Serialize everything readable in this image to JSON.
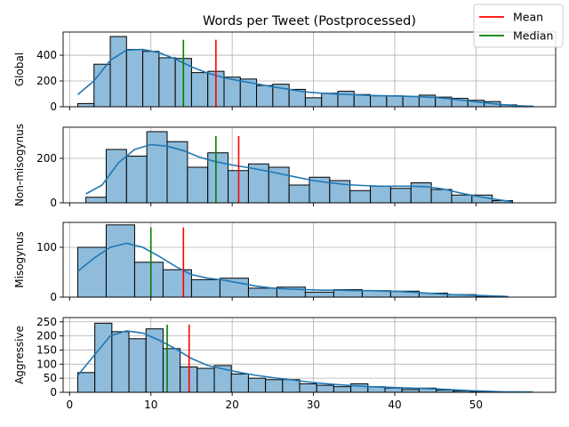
{
  "title": "Words per Tweet (Postprocessed)",
  "legend": {
    "placement": "top-right",
    "items": [
      {
        "label": "Mean",
        "color": "#ff0000"
      },
      {
        "label": "Median",
        "color": "#008000"
      }
    ]
  },
  "colors": {
    "bar_fill": "#8fbcdb",
    "bar_edge": "#000000",
    "kde": "#1f77b4",
    "grid": "#b0b0b0"
  },
  "chart_data": [
    {
      "type": "bar",
      "name": "Global",
      "ylabel": "Global",
      "xlim": [
        -0.8,
        59.8
      ],
      "ylim": [
        0,
        580
      ],
      "yticks": [
        0,
        200,
        400
      ],
      "bin_edges": [
        1,
        3,
        5,
        7,
        9,
        11,
        13,
        15,
        17,
        19,
        21,
        23,
        25,
        27,
        29,
        31,
        33,
        35,
        37,
        39,
        41,
        43,
        45,
        47,
        49,
        51,
        53,
        55,
        57
      ],
      "values": [
        25,
        330,
        545,
        445,
        430,
        380,
        375,
        265,
        275,
        230,
        215,
        165,
        175,
        135,
        70,
        105,
        120,
        95,
        85,
        85,
        80,
        90,
        75,
        65,
        50,
        40,
        15,
        5
      ],
      "mean": 18,
      "median": 14,
      "ref_line_top": 520,
      "kde": [
        [
          1,
          95
        ],
        [
          3,
          200
        ],
        [
          5,
          360
        ],
        [
          7,
          440
        ],
        [
          9,
          445
        ],
        [
          11,
          420
        ],
        [
          13,
          370
        ],
        [
          15,
          310
        ],
        [
          17,
          260
        ],
        [
          19,
          225
        ],
        [
          21,
          200
        ],
        [
          23,
          178
        ],
        [
          25,
          155
        ],
        [
          27,
          135
        ],
        [
          29,
          115
        ],
        [
          31,
          105
        ],
        [
          33,
          98
        ],
        [
          35,
          93
        ],
        [
          37,
          88
        ],
        [
          39,
          85
        ],
        [
          41,
          82
        ],
        [
          43,
          78
        ],
        [
          45,
          72
        ],
        [
          47,
          60
        ],
        [
          49,
          45
        ],
        [
          51,
          32
        ],
        [
          53,
          18
        ],
        [
          55,
          8
        ],
        [
          57,
          2
        ]
      ]
    },
    {
      "type": "bar",
      "name": "Non-misogynus",
      "ylabel": "Non-misogynus",
      "xlim": [
        -0.8,
        59.8
      ],
      "ylim": [
        0,
        340
      ],
      "yticks": [
        0,
        200
      ],
      "bin_edges": [
        2,
        4.5,
        7,
        9.5,
        12,
        14.5,
        17,
        19.5,
        22,
        24.5,
        27,
        29.5,
        32,
        34.5,
        37,
        39.5,
        42,
        44.5,
        47,
        49.5,
        52,
        54.5
      ],
      "values": [
        25,
        240,
        210,
        320,
        275,
        160,
        225,
        145,
        175,
        160,
        80,
        115,
        100,
        55,
        75,
        65,
        90,
        60,
        35,
        35,
        10
      ],
      "mean": 20.8,
      "median": 18,
      "ref_line_top": 300,
      "kde": [
        [
          2,
          40
        ],
        [
          4,
          80
        ],
        [
          6,
          180
        ],
        [
          8,
          240
        ],
        [
          10,
          262
        ],
        [
          12,
          255
        ],
        [
          14,
          235
        ],
        [
          16,
          205
        ],
        [
          18,
          185
        ],
        [
          20,
          170
        ],
        [
          22,
          158
        ],
        [
          24,
          145
        ],
        [
          26,
          130
        ],
        [
          28,
          115
        ],
        [
          30,
          100
        ],
        [
          32,
          90
        ],
        [
          34,
          82
        ],
        [
          36,
          78
        ],
        [
          38,
          75
        ],
        [
          40,
          75
        ],
        [
          42,
          75
        ],
        [
          44,
          72
        ],
        [
          46,
          62
        ],
        [
          48,
          45
        ],
        [
          50,
          30
        ],
        [
          52,
          18
        ],
        [
          54.5,
          5
        ]
      ]
    },
    {
      "type": "bar",
      "name": "Misogynus",
      "ylabel": "Misogynus",
      "xlim": [
        -0.8,
        59.8
      ],
      "ylim": [
        0,
        150
      ],
      "yticks": [
        0,
        100
      ],
      "bin_edges": [
        1,
        4.5,
        8,
        11.5,
        15,
        18.5,
        22,
        25.5,
        29,
        32.5,
        36,
        39.5,
        43,
        46.5,
        50,
        53.5
      ],
      "values": [
        100,
        145,
        70,
        55,
        35,
        38,
        18,
        20,
        10,
        15,
        13,
        12,
        8,
        5,
        2
      ],
      "mean": 14,
      "median": 10,
      "ref_line_top": 140,
      "kde": [
        [
          1,
          52
        ],
        [
          3,
          78
        ],
        [
          5,
          100
        ],
        [
          7,
          108
        ],
        [
          9,
          100
        ],
        [
          11,
          82
        ],
        [
          13,
          62
        ],
        [
          15,
          45
        ],
        [
          17,
          38
        ],
        [
          19,
          34
        ],
        [
          21,
          28
        ],
        [
          23,
          22
        ],
        [
          25,
          18
        ],
        [
          27,
          16
        ],
        [
          29,
          15
        ],
        [
          31,
          14
        ],
        [
          33,
          14
        ],
        [
          35,
          13
        ],
        [
          37,
          13
        ],
        [
          39,
          12
        ],
        [
          41,
          11
        ],
        [
          43,
          9
        ],
        [
          45,
          7
        ],
        [
          47,
          5
        ],
        [
          49,
          4
        ],
        [
          51,
          3
        ],
        [
          54,
          1
        ]
      ]
    },
    {
      "type": "bar",
      "name": "Aggressive",
      "ylabel": "Aggressive",
      "xlim": [
        -0.8,
        59.8
      ],
      "ylim": [
        0,
        265
      ],
      "yticks": [
        0,
        50,
        100,
        150,
        200,
        250
      ],
      "xticks": [
        0,
        10,
        20,
        30,
        40,
        50
      ],
      "bin_edges": [
        1,
        3.1,
        5.2,
        7.3,
        9.4,
        11.5,
        13.6,
        15.7,
        17.8,
        19.9,
        22,
        24.1,
        26.2,
        28.3,
        30.4,
        32.5,
        34.6,
        36.7,
        38.8,
        40.9,
        43,
        45.1,
        47.2,
        49.3,
        51.4,
        53.5,
        55.6
      ],
      "values": [
        70,
        245,
        215,
        190,
        225,
        155,
        90,
        85,
        95,
        65,
        50,
        45,
        45,
        30,
        25,
        20,
        30,
        20,
        15,
        10,
        15,
        8,
        5,
        3,
        2,
        1
      ],
      "mean": 14.7,
      "median": 12,
      "ref_line_top": 240,
      "kde": [
        [
          1,
          60
        ],
        [
          3,
          130
        ],
        [
          5,
          200
        ],
        [
          7,
          218
        ],
        [
          9,
          210
        ],
        [
          11,
          185
        ],
        [
          13,
          155
        ],
        [
          15,
          120
        ],
        [
          17,
          95
        ],
        [
          19,
          82
        ],
        [
          21,
          70
        ],
        [
          23,
          60
        ],
        [
          25,
          52
        ],
        [
          27,
          45
        ],
        [
          29,
          38
        ],
        [
          31,
          32
        ],
        [
          33,
          27
        ],
        [
          35,
          23
        ],
        [
          37,
          20
        ],
        [
          39,
          18
        ],
        [
          41,
          16
        ],
        [
          43,
          14
        ],
        [
          45,
          12
        ],
        [
          47,
          9
        ],
        [
          49,
          6
        ],
        [
          51,
          4
        ],
        [
          53,
          2
        ],
        [
          57,
          1
        ]
      ]
    }
  ]
}
